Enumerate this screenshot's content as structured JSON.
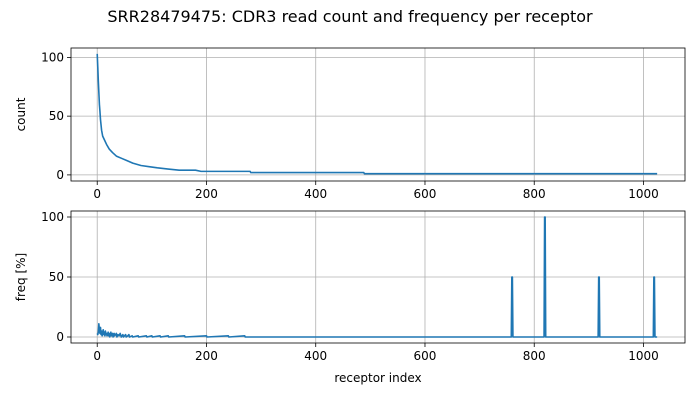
{
  "figure": {
    "title": "SRR28479475: CDR3 read count and frequency per receptor"
  },
  "style": {
    "line_color": "#1f77b4",
    "grid_color": "#b0b0b0",
    "axes_color": "#000000"
  },
  "chart_data": [
    {
      "type": "line",
      "title": "",
      "xlabel": "",
      "ylabel": "count",
      "xlim": [
        -48,
        1076
      ],
      "ylim": [
        -5.2,
        108
      ],
      "xticks": [
        0,
        200,
        400,
        600,
        800,
        1000
      ],
      "yticks": [
        0,
        50,
        100
      ],
      "grid": true,
      "series": [
        {
          "points": [
            [
              0,
              103
            ],
            [
              1,
              92
            ],
            [
              2,
              80
            ],
            [
              3,
              70
            ],
            [
              4,
              60
            ],
            [
              5,
              54
            ],
            [
              6,
              47
            ],
            [
              8,
              38
            ],
            [
              10,
              33
            ],
            [
              13,
              30
            ],
            [
              17,
              26
            ],
            [
              22,
              22
            ],
            [
              28,
              19
            ],
            [
              35,
              16
            ],
            [
              45,
              14
            ],
            [
              55,
              12
            ],
            [
              65,
              10
            ],
            [
              80,
              8
            ],
            [
              95,
              7
            ],
            [
              110,
              6
            ],
            [
              130,
              5
            ],
            [
              150,
              4
            ],
            [
              180,
              4
            ],
            [
              190,
              3
            ],
            [
              280,
              3
            ],
            [
              281,
              2
            ],
            [
              488,
              2
            ],
            [
              489,
              1
            ],
            [
              1025,
              1
            ]
          ]
        }
      ]
    },
    {
      "type": "line",
      "title": "",
      "xlabel": "receptor index",
      "ylabel": "freq [%]",
      "xlim": [
        -48,
        1076
      ],
      "ylim": [
        -5,
        105
      ],
      "xticks": [
        0,
        200,
        400,
        600,
        800,
        1000
      ],
      "yticks": [
        0,
        50,
        100
      ],
      "grid": true,
      "series": [
        {
          "points": [
            [
              0,
              3
            ],
            [
              1,
              2
            ],
            [
              2,
              4
            ],
            [
              3,
              11
            ],
            [
              4,
              6
            ],
            [
              5,
              3
            ],
            [
              6,
              8
            ],
            [
              7,
              2
            ],
            [
              8,
              5
            ],
            [
              9,
              1
            ],
            [
              10,
              3
            ],
            [
              11,
              6
            ],
            [
              12,
              2
            ],
            [
              13,
              4
            ],
            [
              14,
              1
            ],
            [
              15,
              5
            ],
            [
              16,
              2
            ],
            [
              17,
              3
            ],
            [
              18,
              1
            ],
            [
              20,
              4
            ],
            [
              21,
              1
            ],
            [
              22,
              3
            ],
            [
              23,
              0
            ],
            [
              25,
              4
            ],
            [
              26,
              1
            ],
            [
              28,
              3
            ],
            [
              29,
              0
            ],
            [
              31,
              3
            ],
            [
              32,
              1
            ],
            [
              35,
              3
            ],
            [
              36,
              0
            ],
            [
              38,
              2
            ],
            [
              40,
              1
            ],
            [
              42,
              3
            ],
            [
              44,
              0
            ],
            [
              47,
              2
            ],
            [
              48,
              0
            ],
            [
              52,
              2
            ],
            [
              53,
              0
            ],
            [
              56,
              1
            ],
            [
              58,
              2
            ],
            [
              59,
              0
            ],
            [
              64,
              1
            ],
            [
              65,
              0
            ],
            [
              75,
              1
            ],
            [
              76,
              0
            ],
            [
              90,
              1
            ],
            [
              91,
              0
            ],
            [
              100,
              1
            ],
            [
              101,
              0
            ],
            [
              115,
              1
            ],
            [
              116,
              0
            ],
            [
              130,
              1
            ],
            [
              131,
              0
            ],
            [
              160,
              1
            ],
            [
              161,
              0
            ],
            [
              200,
              1
            ],
            [
              201,
              0
            ],
            [
              240,
              1
            ],
            [
              241,
              0
            ],
            [
              270,
              1
            ],
            [
              271,
              0
            ],
            [
              758,
              0
            ],
            [
              759,
              50
            ],
            [
              760,
              50
            ],
            [
              761,
              0
            ],
            [
              818,
              0
            ],
            [
              819,
              100
            ],
            [
              820,
              100
            ],
            [
              821,
              0
            ],
            [
              917,
              0
            ],
            [
              918,
              50
            ],
            [
              919,
              50
            ],
            [
              920,
              0
            ],
            [
              1018,
              0
            ],
            [
              1019,
              50
            ],
            [
              1020,
              50
            ],
            [
              1021,
              0
            ],
            [
              1025,
              0
            ]
          ]
        }
      ]
    }
  ]
}
